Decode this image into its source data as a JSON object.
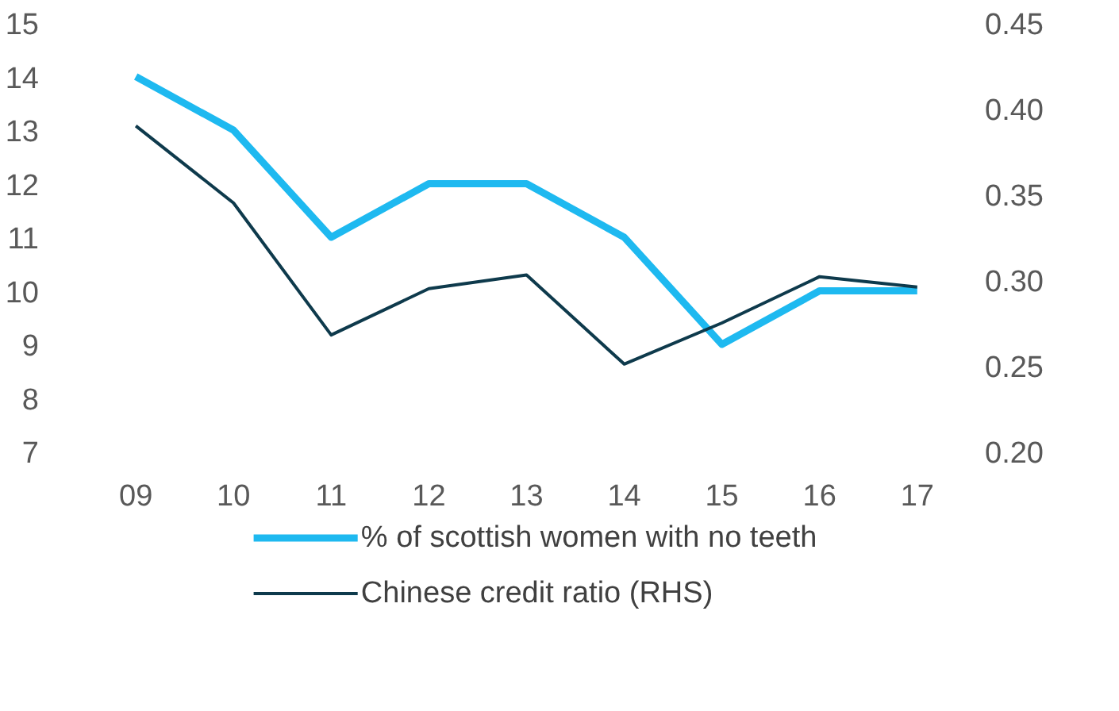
{
  "chart_data": {
    "type": "line",
    "categories": [
      "09",
      "10",
      "11",
      "12",
      "13",
      "14",
      "15",
      "16",
      "17"
    ],
    "series": [
      {
        "name": "% of scottish women with no teeth",
        "color": "#1eb9f0",
        "values": [
          14,
          13,
          11,
          12,
          12,
          11,
          9,
          10,
          10
        ]
      },
      {
        "name": "Chinese credit ratio (RHS)",
        "color": "#0e3a4c",
        "axis": "y2",
        "values": [
          0.39,
          0.345,
          0.268,
          0.295,
          0.303,
          0.251,
          0.275,
          0.302,
          0.296
        ]
      }
    ],
    "ylim": [
      7,
      15
    ],
    "yticks": [
      7,
      8,
      9,
      10,
      11,
      12,
      13,
      14,
      15
    ],
    "y2lim": [
      0.2,
      0.45
    ],
    "y2ticks": [
      {
        "value": 0.2,
        "label": "0.20"
      },
      {
        "value": 0.25,
        "label": "0.25"
      },
      {
        "value": 0.3,
        "label": "0.30"
      },
      {
        "value": 0.35,
        "label": "0.35"
      },
      {
        "value": 0.4,
        "label": "0.40"
      },
      {
        "value": 0.45,
        "label": "0.45"
      }
    ],
    "grid": false,
    "legend": "bottom",
    "marker": "none",
    "line_style": "solid"
  }
}
